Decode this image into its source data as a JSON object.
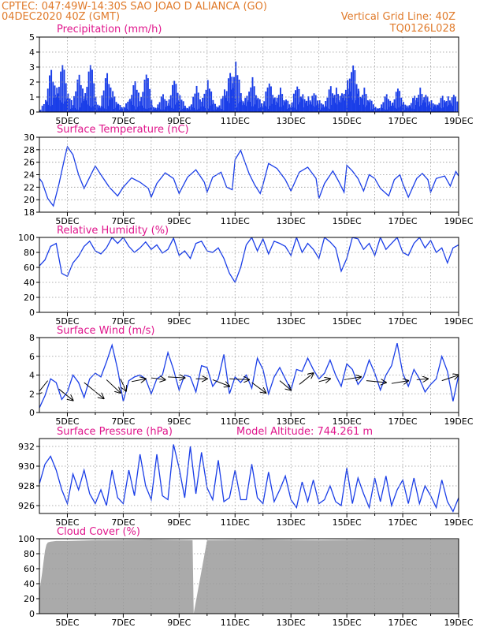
{
  "header": {
    "line1": "CPTEC:   047:49W-14:30S   SAO JOAO D ALIANCA (GO)",
    "line2": "04DEC2020 40Z (GMT)",
    "grid_note": "Vertical Grid Line: 40Z",
    "code": "TQ0126L028"
  },
  "colors": {
    "header": "#e07a2a",
    "title": "#e0168c",
    "series": "#1a3ee8",
    "cloud": "#aaaaaa"
  },
  "x_axis": {
    "start_day": 4,
    "end_day": 19,
    "tick_labels": [
      "5DEC",
      "7DEC",
      "9DEC",
      "11DEC",
      "13DEC",
      "15DEC",
      "17DEC",
      "19DEC"
    ],
    "tick_days": [
      5,
      7,
      9,
      11,
      13,
      15,
      17,
      19
    ]
  },
  "chart_data": [
    {
      "id": "precipitation",
      "type": "bar",
      "title": "Precipitation (mm/h)",
      "ylim": [
        0,
        5
      ],
      "yticks": [
        0,
        1,
        2,
        3,
        4,
        5
      ],
      "x": [
        4.2,
        4.4,
        4.6,
        4.8,
        5.0,
        5.2,
        5.4,
        5.6,
        5.8,
        6.0,
        6.2,
        6.4,
        6.6,
        6.8,
        7.0,
        7.2,
        7.4,
        7.6,
        7.8,
        8.0,
        8.2,
        8.4,
        8.6,
        8.8,
        9.0,
        9.2,
        9.4,
        9.6,
        9.8,
        10.0,
        10.2,
        10.4,
        10.6,
        10.8,
        11.0,
        11.2,
        11.4,
        11.6,
        11.8,
        12.0,
        12.2,
        12.4,
        12.6,
        12.8,
        13.0,
        13.2,
        13.4,
        13.6,
        13.8,
        14.0,
        14.2,
        14.4,
        14.6,
        14.8,
        15.0,
        15.2,
        15.4,
        15.6,
        15.8,
        16.0,
        16.2,
        16.4,
        16.6,
        16.8,
        17.0,
        17.2,
        17.4,
        17.6,
        17.8,
        18.0,
        18.2,
        18.4,
        18.6,
        18.8
      ],
      "values": [
        0.8,
        2.6,
        1.4,
        3.0,
        1.1,
        0.3,
        2.3,
        0.9,
        3.0,
        0.6,
        0.4,
        2.4,
        1.2,
        0.5,
        0.3,
        0.8,
        1.9,
        0.5,
        2.4,
        0.4,
        0.3,
        1.1,
        0.5,
        2.0,
        1.0,
        0.3,
        0.4,
        1.5,
        0.4,
        1.9,
        0.6,
        0.3,
        1.3,
        2.5,
        3.0,
        0.8,
        1.0,
        2.0,
        0.9,
        0.5,
        1.9,
        0.9,
        1.4,
        0.8,
        0.4,
        1.7,
        1.1,
        0.9,
        1.2,
        0.7,
        0.4,
        1.6,
        1.4,
        1.2,
        1.9,
        3.1,
        1.3,
        1.4,
        0.8,
        0.3,
        0.3,
        1.1,
        0.5,
        1.5,
        0.6,
        0.4,
        1.0,
        1.4,
        1.1,
        0.7,
        0.5,
        1.0,
        0.9,
        1.1
      ]
    },
    {
      "id": "temperature",
      "type": "line",
      "title": "Surface Temperature (nC)",
      "ylim": [
        18,
        30
      ],
      "yticks": [
        18,
        20,
        22,
        24,
        26,
        28,
        30
      ],
      "x": [
        4.0,
        4.1,
        4.3,
        4.5,
        4.7,
        4.9,
        5.0,
        5.2,
        5.4,
        5.6,
        5.8,
        6.0,
        6.2,
        6.5,
        6.8,
        7.0,
        7.3,
        7.6,
        7.9,
        8.0,
        8.2,
        8.5,
        8.8,
        9.0,
        9.3,
        9.6,
        9.9,
        10.0,
        10.2,
        10.5,
        10.7,
        10.9,
        11.0,
        11.2,
        11.5,
        11.7,
        11.9,
        12.0,
        12.2,
        12.5,
        12.8,
        13.0,
        13.3,
        13.6,
        13.9,
        14.0,
        14.2,
        14.5,
        14.7,
        14.9,
        15.0,
        15.2,
        15.4,
        15.6,
        15.8,
        16.0,
        16.2,
        16.5,
        16.7,
        16.9,
        17.0,
        17.2,
        17.5,
        17.7,
        17.9,
        18.0,
        18.2,
        18.5,
        18.7,
        18.9,
        19.0
      ],
      "values": [
        23.4,
        22.8,
        20.2,
        19.0,
        22.5,
        26.6,
        28.5,
        27.2,
        24.0,
        21.8,
        23.6,
        25.4,
        24.0,
        22.0,
        20.6,
        22.0,
        23.5,
        22.8,
        21.8,
        20.4,
        22.6,
        24.3,
        23.4,
        21.0,
        23.6,
        24.8,
        22.8,
        21.2,
        23.6,
        24.4,
        22.0,
        21.6,
        26.4,
        27.9,
        24.2,
        22.4,
        21.0,
        22.4,
        25.8,
        25.0,
        23.2,
        21.4,
        24.4,
        25.2,
        23.4,
        20.2,
        22.6,
        24.6,
        23.0,
        21.2,
        25.5,
        24.6,
        23.4,
        21.4,
        24.0,
        23.4,
        21.8,
        20.6,
        23.2,
        24.0,
        22.6,
        20.4,
        23.4,
        24.2,
        23.2,
        21.2,
        23.4,
        23.8,
        22.2,
        24.5,
        23.8
      ]
    },
    {
      "id": "humidity",
      "type": "line",
      "title": "Relative Humidity (%)",
      "ylim": [
        0,
        100
      ],
      "yticks": [
        0,
        20,
        40,
        60,
        80,
        100
      ],
      "x": [
        4.0,
        4.2,
        4.4,
        4.6,
        4.8,
        5.0,
        5.2,
        5.4,
        5.6,
        5.8,
        6.0,
        6.2,
        6.4,
        6.6,
        6.8,
        7.0,
        7.2,
        7.4,
        7.6,
        7.8,
        8.0,
        8.2,
        8.4,
        8.6,
        8.8,
        9.0,
        9.2,
        9.4,
        9.6,
        9.8,
        10.0,
        10.2,
        10.4,
        10.6,
        10.8,
        11.0,
        11.2,
        11.4,
        11.6,
        11.8,
        12.0,
        12.2,
        12.4,
        12.6,
        12.8,
        13.0,
        13.2,
        13.4,
        13.6,
        13.8,
        14.0,
        14.2,
        14.4,
        14.6,
        14.8,
        15.0,
        15.2,
        15.4,
        15.6,
        15.8,
        16.0,
        16.2,
        16.4,
        16.6,
        16.8,
        17.0,
        17.2,
        17.4,
        17.6,
        17.8,
        18.0,
        18.2,
        18.4,
        18.6,
        18.8,
        19.0
      ],
      "values": [
        62,
        70,
        88,
        92,
        52,
        48,
        66,
        75,
        88,
        95,
        82,
        78,
        86,
        100,
        92,
        100,
        88,
        80,
        86,
        94,
        84,
        90,
        79,
        84,
        99,
        76,
        82,
        72,
        92,
        95,
        82,
        80,
        86,
        72,
        52,
        40,
        60,
        90,
        100,
        82,
        98,
        78,
        95,
        92,
        88,
        76,
        100,
        80,
        92,
        84,
        72,
        100,
        94,
        86,
        55,
        72,
        100,
        98,
        84,
        92,
        76,
        100,
        84,
        92,
        100,
        80,
        76,
        92,
        100,
        86,
        96,
        80,
        86,
        66,
        86,
        90
      ]
    },
    {
      "id": "wind",
      "type": "line",
      "title": "Surface Wind (m/s)",
      "ylim": [
        0,
        8
      ],
      "yticks": [
        0,
        2,
        4,
        6,
        8
      ],
      "x": [
        4.0,
        4.2,
        4.4,
        4.6,
        4.8,
        5.0,
        5.2,
        5.4,
        5.6,
        5.8,
        6.0,
        6.2,
        6.4,
        6.6,
        6.8,
        7.0,
        7.2,
        7.4,
        7.6,
        7.8,
        8.0,
        8.2,
        8.4,
        8.6,
        8.8,
        9.0,
        9.2,
        9.4,
        9.6,
        9.8,
        10.0,
        10.2,
        10.4,
        10.6,
        10.8,
        11.0,
        11.2,
        11.4,
        11.6,
        11.8,
        12.0,
        12.2,
        12.4,
        12.6,
        12.8,
        13.0,
        13.2,
        13.4,
        13.6,
        13.8,
        14.0,
        14.2,
        14.4,
        14.6,
        14.8,
        15.0,
        15.2,
        15.4,
        15.6,
        15.8,
        16.0,
        16.2,
        16.4,
        16.6,
        16.8,
        17.0,
        17.2,
        17.4,
        17.6,
        17.8,
        18.0,
        18.2,
        18.4,
        18.6,
        18.8,
        19.0
      ],
      "values": [
        0.5,
        1.8,
        3.6,
        3.2,
        1.4,
        2.2,
        4.0,
        3.2,
        1.6,
        3.6,
        4.2,
        3.8,
        5.4,
        7.2,
        4.6,
        1.2,
        3.4,
        3.8,
        4.0,
        3.6,
        2.0,
        3.6,
        4.0,
        6.4,
        4.6,
        2.4,
        4.0,
        3.8,
        2.2,
        5.0,
        4.8,
        2.8,
        3.6,
        6.2,
        2.0,
        3.8,
        3.2,
        4.0,
        2.6,
        5.8,
        4.6,
        2.0,
        3.8,
        4.8,
        3.6,
        2.4,
        4.6,
        4.4,
        5.8,
        4.6,
        3.6,
        4.2,
        5.6,
        4.0,
        2.8,
        5.2,
        4.6,
        3.0,
        3.8,
        5.6,
        4.2,
        2.4,
        4.0,
        5.0,
        7.4,
        4.2,
        2.8,
        4.6,
        3.6,
        2.2,
        3.0,
        3.6,
        6.0,
        4.4,
        1.2,
        4.0
      ],
      "arrows": [
        [
          4.3,
          3.4,
          3.9,
          1.9
        ],
        [
          4.7,
          2.5,
          5.2,
          1.3
        ],
        [
          5.6,
          3.2,
          6.3,
          1.5
        ],
        [
          6.4,
          3.5,
          6.9,
          2.1
        ],
        [
          6.9,
          3.6,
          7.1,
          2.3
        ],
        [
          7.3,
          3.3,
          7.8,
          3.6
        ],
        [
          8.0,
          3.7,
          8.5,
          3.5
        ],
        [
          8.6,
          3.8,
          9.2,
          3.7
        ],
        [
          9.6,
          3.6,
          10.0,
          3.6
        ],
        [
          10.2,
          3.5,
          10.8,
          2.8
        ],
        [
          10.8,
          3.6,
          11.5,
          3.5
        ],
        [
          11.6,
          3.2,
          12.1,
          2.1
        ],
        [
          12.6,
          3.4,
          13.0,
          2.4
        ],
        [
          13.3,
          3.0,
          13.8,
          4.2
        ],
        [
          14.0,
          3.3,
          14.4,
          3.6
        ],
        [
          14.9,
          3.5,
          15.5,
          3.8
        ],
        [
          15.7,
          3.4,
          16.4,
          3.2
        ],
        [
          16.6,
          3.1,
          17.2,
          3.4
        ],
        [
          17.5,
          3.5,
          17.9,
          3.6
        ],
        [
          18.4,
          3.4,
          19.0,
          4.0
        ]
      ]
    },
    {
      "id": "pressure",
      "type": "line",
      "title": "Surface Pressure (hPa)",
      "subtitle": "Model Altitude: 744.261 m",
      "ylim": [
        925.2,
        932.8
      ],
      "yticks": [
        926,
        928,
        930,
        932
      ],
      "x": [
        4.0,
        4.2,
        4.4,
        4.6,
        4.8,
        5.0,
        5.2,
        5.4,
        5.6,
        5.8,
        6.0,
        6.2,
        6.4,
        6.6,
        6.8,
        7.0,
        7.2,
        7.4,
        7.6,
        7.8,
        8.0,
        8.2,
        8.4,
        8.6,
        8.8,
        9.0,
        9.2,
        9.4,
        9.6,
        9.8,
        10.0,
        10.2,
        10.4,
        10.6,
        10.8,
        11.0,
        11.2,
        11.4,
        11.6,
        11.8,
        12.0,
        12.2,
        12.4,
        12.6,
        12.8,
        13.0,
        13.2,
        13.4,
        13.6,
        13.8,
        14.0,
        14.2,
        14.4,
        14.6,
        14.8,
        15.0,
        15.2,
        15.4,
        15.6,
        15.8,
        16.0,
        16.2,
        16.4,
        16.6,
        16.8,
        17.0,
        17.2,
        17.4,
        17.6,
        17.8,
        18.0,
        18.2,
        18.4,
        18.6,
        18.8,
        19.0
      ],
      "values": [
        928.2,
        930.2,
        931.0,
        929.6,
        927.6,
        926.2,
        929.2,
        927.6,
        929.6,
        927.2,
        926.2,
        927.6,
        926.0,
        929.6,
        926.8,
        926.2,
        929.6,
        927.0,
        931.2,
        928.0,
        926.6,
        931.2,
        927.0,
        926.6,
        932.2,
        929.8,
        926.8,
        932.0,
        927.2,
        931.4,
        927.8,
        926.6,
        930.6,
        926.4,
        926.8,
        929.6,
        926.6,
        926.6,
        930.2,
        926.8,
        926.2,
        929.4,
        926.4,
        927.6,
        929.0,
        926.6,
        925.8,
        928.4,
        926.4,
        928.6,
        926.2,
        926.6,
        928.0,
        926.4,
        926.0,
        929.8,
        926.2,
        928.8,
        927.2,
        925.8,
        928.8,
        926.4,
        929.0,
        926.0,
        927.6,
        928.6,
        926.2,
        928.8,
        926.2,
        928.0,
        927.0,
        925.8,
        928.6,
        926.4,
        925.4,
        926.8
      ]
    },
    {
      "id": "cloud",
      "type": "area",
      "title": "Cloud Cover (%)",
      "ylim": [
        0,
        100
      ],
      "yticks": [
        0,
        20,
        40,
        60,
        80,
        100
      ],
      "x": [
        4.0,
        4.05,
        4.1,
        4.15,
        4.2,
        4.25,
        4.3,
        4.4,
        4.6,
        5.0,
        6.0,
        8.0,
        9.48,
        9.52,
        10.0,
        12.0,
        14.0,
        16.0,
        18.0,
        19.0
      ],
      "values": [
        30,
        42,
        55,
        70,
        84,
        92,
        95,
        96,
        97,
        97,
        98,
        99,
        98,
        0,
        98,
        99,
        98,
        99,
        99,
        99
      ]
    }
  ]
}
